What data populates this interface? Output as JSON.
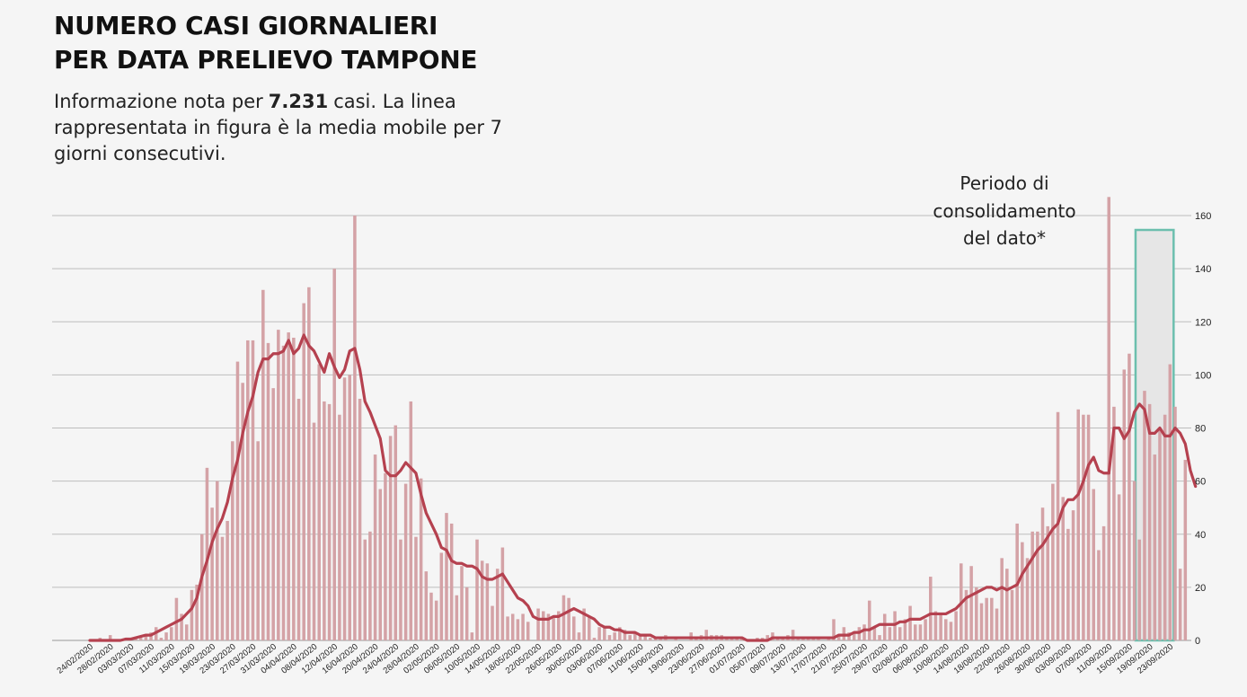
{
  "header": {
    "title_line1": "NUMERO CASI GIORNALIERI",
    "title_line2": "PER DATA PRELIEVO TAMPONE",
    "subtitle_pre": "Informazione nota per",
    "subtitle_count": "7.231",
    "subtitle_post": "casi. La linea rappresentata in figura è la media mobile per 7 giorni consecutivi."
  },
  "annotation": {
    "line1": "Periodo di",
    "line2": "consolidamento",
    "line3": "del dato*"
  },
  "colors": {
    "bar": "#d4a2a6",
    "line": "#b5414f",
    "grid": "#bdbdbd",
    "highlight_border": "#6cbfae",
    "highlight_fill": "#e6e6e6"
  },
  "chart_data": {
    "type": "bar",
    "x_start": "24/02/2020",
    "x_end": "23/09/2020",
    "ylim": [
      0,
      160
    ],
    "yticks": [
      0,
      20,
      40,
      60,
      80,
      100,
      120,
      140,
      160
    ],
    "highlight_range": [
      "18/09/2020",
      "23/09/2020"
    ],
    "xtick_labels": [
      "24/02/2020",
      "28/02/2020",
      "03/03/2020",
      "07/03/2020",
      "11/03/2020",
      "15/03/2020",
      "19/03/2020",
      "23/03/2020",
      "27/03/2020",
      "31/03/2020",
      "04/04/2020",
      "08/04/2020",
      "12/04/2020",
      "16/04/2020",
      "20/04/2020",
      "24/04/2020",
      "28/04/2020",
      "02/05/2020",
      "06/05/2020",
      "10/05/2020",
      "14/05/2020",
      "18/05/2020",
      "22/05/2020",
      "26/05/2020",
      "30/05/2020",
      "03/06/2020",
      "07/06/2020",
      "11/06/2020",
      "15/06/2020",
      "19/06/2020",
      "23/06/2020",
      "27/06/2020",
      "01/07/2020",
      "05/07/2020",
      "09/07/2020",
      "13/07/2020",
      "17/07/2020",
      "21/07/2020",
      "25/07/2020",
      "29/07/2020",
      "02/08/2020",
      "06/08/2020",
      "10/08/2020",
      "14/08/2020",
      "18/08/2020",
      "22/08/2020",
      "26/08/2020",
      "30/08/2020",
      "03/09/2020",
      "07/09/2020",
      "11/09/2020",
      "15/09/2020",
      "19/09/2020",
      "23/09/2020"
    ],
    "series": [
      {
        "name": "Casi giornalieri",
        "values": [
          0,
          0,
          1,
          0,
          2,
          0,
          0,
          0,
          0,
          1,
          1,
          2,
          3,
          5,
          1,
          3,
          5,
          16,
          10,
          6,
          19,
          21,
          40,
          65,
          50,
          60,
          39,
          45,
          75,
          105,
          97,
          113,
          113,
          75,
          132,
          112,
          95,
          117,
          111,
          116,
          114,
          91,
          127,
          133,
          82,
          104,
          90,
          89,
          140,
          85,
          99,
          100,
          160,
          91,
          38,
          41,
          70,
          57,
          63,
          77,
          81,
          38,
          59,
          90,
          39,
          61,
          26,
          18,
          15,
          33,
          48,
          44,
          17,
          28,
          20,
          3,
          38,
          30,
          29,
          13,
          27,
          35,
          9,
          10,
          8,
          10,
          7,
          0,
          12,
          11,
          10,
          9,
          11,
          17,
          16,
          9,
          3,
          12,
          9,
          1,
          5,
          5,
          2,
          3,
          5,
          4,
          2,
          3,
          2,
          2,
          1,
          1,
          1,
          2,
          0,
          1,
          0,
          0,
          3,
          1,
          2,
          4,
          2,
          2,
          2,
          1,
          1,
          1,
          1,
          0,
          0,
          1,
          1,
          2,
          3,
          1,
          1,
          2,
          4,
          1,
          1,
          1,
          1,
          1,
          0,
          1,
          8,
          2,
          5,
          3,
          3,
          5,
          6,
          15,
          5,
          2,
          10,
          5,
          11,
          5,
          8,
          13,
          6,
          6,
          8,
          24,
          11,
          10,
          8,
          7,
          11,
          29,
          19,
          28,
          20,
          14,
          16,
          16,
          12,
          31,
          27,
          19,
          44,
          37,
          31,
          41,
          41,
          50,
          43,
          59,
          86,
          54,
          42,
          49,
          87,
          85,
          85,
          57,
          34,
          43,
          167,
          88,
          55,
          102,
          108,
          60,
          38,
          94,
          89,
          70,
          80,
          85,
          104,
          88,
          27,
          68,
          0
        ]
      },
      {
        "name": "Media mobile 7 giorni",
        "values": [
          0,
          0,
          0,
          0,
          0,
          0,
          0,
          0.5,
          0.5,
          1,
          1.5,
          2,
          2,
          3,
          4,
          5,
          6,
          7,
          8,
          10,
          12,
          16,
          24,
          30,
          37,
          42,
          46,
          52,
          61,
          68,
          78,
          86,
          92,
          101,
          106,
          106,
          108,
          108,
          109,
          113,
          108,
          110,
          115,
          111,
          109,
          105,
          101,
          108,
          103,
          99,
          102,
          109,
          110,
          102,
          90,
          86,
          81,
          76,
          64,
          62,
          62,
          64,
          67,
          65,
          63,
          55,
          48,
          44,
          40,
          35,
          34,
          30,
          29,
          29,
          28,
          28,
          27,
          24,
          23,
          23,
          24,
          25,
          22,
          19,
          16,
          15,
          13,
          9,
          8,
          8,
          8,
          9,
          9,
          10,
          11,
          12,
          11,
          10,
          9,
          8,
          6,
          5,
          5,
          4,
          4,
          3,
          3,
          3,
          2,
          2,
          2,
          1,
          1,
          1,
          1,
          1,
          1,
          1,
          1,
          1,
          1,
          1,
          1,
          1,
          1,
          1,
          1,
          1,
          1,
          0,
          0,
          0,
          0,
          0,
          1,
          1,
          1,
          1,
          1,
          1,
          1,
          1,
          1,
          1,
          1,
          1,
          1,
          2,
          2,
          2,
          3,
          3,
          4,
          4,
          5,
          6,
          6,
          6,
          6,
          7,
          7,
          8,
          8,
          8,
          9,
          10,
          10,
          10,
          10,
          11,
          12,
          14,
          16,
          17,
          18,
          19,
          20,
          20,
          19,
          20,
          19,
          20,
          21,
          25,
          28,
          31,
          34,
          36,
          39,
          42,
          44,
          50,
          53,
          53,
          55,
          60,
          66,
          69,
          64,
          63,
          63,
          80,
          80,
          76,
          79,
          86,
          89,
          87,
          78,
          78,
          80,
          77,
          77,
          80,
          78,
          74,
          64,
          58
        ]
      }
    ]
  }
}
